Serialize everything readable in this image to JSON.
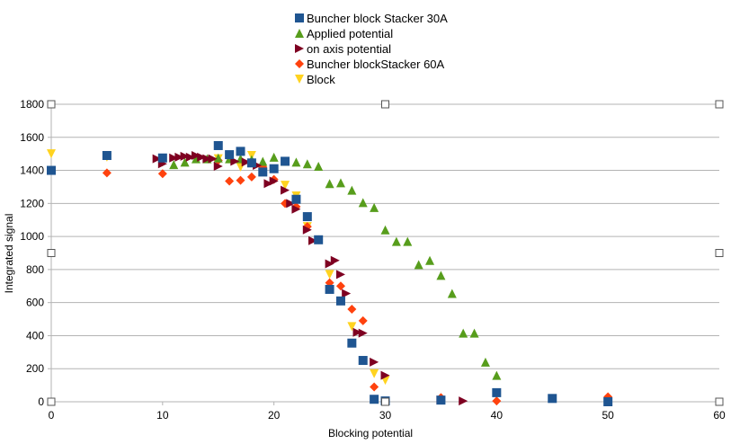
{
  "chart_data": {
    "type": "scatter",
    "title": "",
    "xlabel": "Blocking potential",
    "ylabel": "Integrated signal",
    "xlim": [
      0,
      60
    ],
    "ylim": [
      0,
      1800
    ],
    "xticks": [
      0,
      10,
      20,
      30,
      40,
      50,
      60
    ],
    "yticks": [
      0,
      200,
      400,
      600,
      800,
      1000,
      1200,
      1400,
      1600,
      1800
    ],
    "grid": "horizontal",
    "legend_position": "top-center",
    "series": [
      {
        "name": "Buncher block Stacker 30A",
        "marker": "square",
        "color": "#1f5591",
        "points": [
          [
            0,
            1400
          ],
          [
            5,
            1490
          ],
          [
            10,
            1475
          ],
          [
            15,
            1550
          ],
          [
            16,
            1495
          ],
          [
            17,
            1515
          ],
          [
            18,
            1445
          ],
          [
            19,
            1390
          ],
          [
            20,
            1410
          ],
          [
            21,
            1455
          ],
          [
            22,
            1225
          ],
          [
            23,
            1120
          ],
          [
            24,
            980
          ],
          [
            25,
            680
          ],
          [
            26,
            610
          ],
          [
            27,
            355
          ],
          [
            28,
            250
          ],
          [
            29,
            15
          ],
          [
            30,
            5
          ],
          [
            35,
            10
          ],
          [
            40,
            55
          ],
          [
            45,
            20
          ],
          [
            50,
            0
          ]
        ]
      },
      {
        "name": "Applied potential",
        "marker": "triangle-up",
        "color": "#579d1c",
        "points": [
          [
            11,
            1435
          ],
          [
            12,
            1450
          ],
          [
            13,
            1470
          ],
          [
            14,
            1470
          ],
          [
            15,
            1475
          ],
          [
            16,
            1470
          ],
          [
            17,
            1470
          ],
          [
            18,
            1465
          ],
          [
            19,
            1455
          ],
          [
            20,
            1480
          ],
          [
            21,
            1455
          ],
          [
            22,
            1450
          ],
          [
            23,
            1440
          ],
          [
            24,
            1425
          ],
          [
            25,
            1320
          ],
          [
            26,
            1325
          ],
          [
            27,
            1280
          ],
          [
            28,
            1205
          ],
          [
            29,
            1175
          ],
          [
            30,
            1040
          ],
          [
            31,
            970
          ],
          [
            32,
            970
          ],
          [
            33,
            830
          ],
          [
            34,
            855
          ],
          [
            35,
            765
          ],
          [
            36,
            655
          ],
          [
            37,
            415
          ],
          [
            38,
            415
          ],
          [
            39,
            240
          ],
          [
            40,
            160
          ]
        ]
      },
      {
        "name": "on axis potential",
        "marker": "triangle-right",
        "color": "#7e0021",
        "points": [
          [
            9.5,
            1470
          ],
          [
            10,
            1440
          ],
          [
            11,
            1475
          ],
          [
            11.5,
            1480
          ],
          [
            12,
            1485
          ],
          [
            12.5,
            1480
          ],
          [
            13,
            1490
          ],
          [
            13.5,
            1480
          ],
          [
            14,
            1470
          ],
          [
            14.5,
            1470
          ],
          [
            15,
            1425
          ],
          [
            16.5,
            1455
          ],
          [
            17.5,
            1450
          ],
          [
            18.5,
            1430
          ],
          [
            19.5,
            1320
          ],
          [
            20,
            1335
          ],
          [
            21,
            1280
          ],
          [
            21.5,
            1200
          ],
          [
            22,
            1165
          ],
          [
            23,
            1040
          ],
          [
            23.5,
            975
          ],
          [
            25,
            835
          ],
          [
            25.5,
            855
          ],
          [
            26,
            770
          ],
          [
            26.5,
            655
          ],
          [
            27.5,
            420
          ],
          [
            28,
            415
          ],
          [
            29,
            240
          ],
          [
            30,
            160
          ],
          [
            35,
            10
          ],
          [
            37,
            5
          ]
        ]
      },
      {
        "name": "Buncher blockStacker 60A",
        "marker": "diamond",
        "color": "#ff420e",
        "points": [
          [
            5,
            1385
          ],
          [
            10,
            1380
          ],
          [
            15,
            1460
          ],
          [
            16,
            1335
          ],
          [
            17,
            1340
          ],
          [
            18,
            1360
          ],
          [
            19,
            1420
          ],
          [
            20,
            1345
          ],
          [
            21,
            1200
          ],
          [
            22,
            1180
          ],
          [
            23,
            1060
          ],
          [
            24,
            980
          ],
          [
            25,
            720
          ],
          [
            26,
            700
          ],
          [
            27,
            560
          ],
          [
            28,
            490
          ],
          [
            29,
            90
          ],
          [
            35,
            25
          ],
          [
            40,
            5
          ],
          [
            50,
            30
          ]
        ]
      },
      {
        "name": "Block",
        "marker": "triangle-down",
        "color": "#ffd320",
        "points": [
          [
            0,
            1500
          ],
          [
            5,
            1480
          ],
          [
            10,
            1450
          ],
          [
            15,
            1470
          ],
          [
            17,
            1420
          ],
          [
            18,
            1490
          ],
          [
            21,
            1310
          ],
          [
            22,
            1245
          ],
          [
            23,
            1060
          ],
          [
            25,
            770
          ],
          [
            27,
            455
          ],
          [
            29,
            170
          ],
          [
            30,
            130
          ]
        ]
      }
    ]
  }
}
